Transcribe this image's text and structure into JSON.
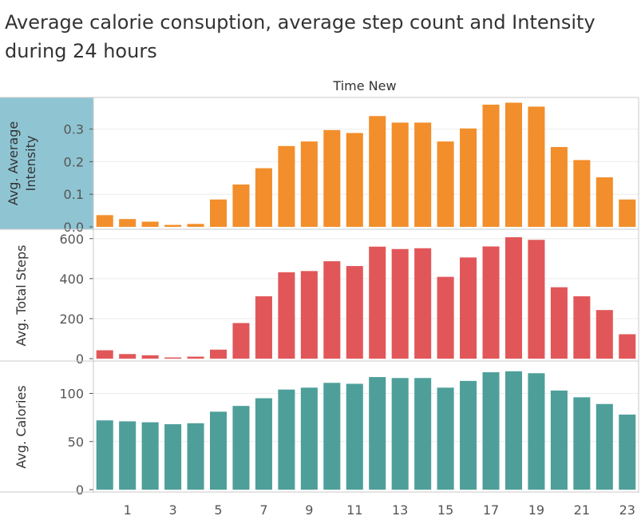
{
  "title": "Average calorie consuption, average step count and Intensity during 24 hours",
  "chart_data": {
    "type": "bar",
    "column_header": "Time New",
    "categories": [
      "0",
      "1",
      "2",
      "3",
      "4",
      "5",
      "6",
      "7",
      "8",
      "9",
      "10",
      "11",
      "12",
      "13",
      "14",
      "15",
      "16",
      "17",
      "18",
      "19",
      "20",
      "21",
      "22",
      "23"
    ],
    "x_tick_labels": [
      "1",
      "3",
      "5",
      "7",
      "9",
      "11",
      "13",
      "15",
      "17",
      "19",
      "21",
      "23"
    ],
    "panels": [
      {
        "name": "Avg. Average Intensity",
        "ylabel": "Avg. Average Intensity",
        "color": "#F28E2B",
        "ylim": [
          0,
          0.38
        ],
        "ticks": [
          0.0,
          0.1,
          0.2,
          0.3
        ],
        "tick_labels": [
          "0.0",
          "0.1",
          "0.2",
          "0.3"
        ],
        "values": [
          0.036,
          0.024,
          0.016,
          0.006,
          0.009,
          0.084,
          0.13,
          0.18,
          0.248,
          0.262,
          0.297,
          0.288,
          0.34,
          0.32,
          0.32,
          0.262,
          0.302,
          0.375,
          0.381,
          0.369,
          0.245,
          0.205,
          0.152,
          0.084
        ]
      },
      {
        "name": "Avg. Total Steps",
        "ylabel": "Avg. Total Steps",
        "color": "#E15759",
        "ylim": [
          0,
          615
        ],
        "ticks": [
          0,
          200,
          400,
          600
        ],
        "tick_labels": [
          "0",
          "200",
          "400",
          "600"
        ],
        "values": [
          42,
          23,
          17,
          6,
          10,
          45,
          178,
          312,
          432,
          438,
          487,
          463,
          560,
          548,
          552,
          409,
          506,
          561,
          607,
          594,
          357,
          312,
          243,
          122
        ]
      },
      {
        "name": "Avg. Calories",
        "ylabel": "Avg. Calories",
        "color": "#4E9F9A",
        "ylim": [
          0,
          127
        ],
        "ticks": [
          0,
          50,
          100
        ],
        "tick_labels": [
          "0",
          "50",
          "100"
        ],
        "values": [
          72,
          71,
          70,
          68,
          69,
          81,
          87,
          95,
          104,
          106,
          111,
          110,
          117,
          116,
          116,
          106,
          113,
          122,
          123,
          121,
          103,
          96,
          89,
          78
        ]
      }
    ],
    "highlight": {
      "panel": "Avg. Average Intensity",
      "color": "#8FC5D3"
    }
  }
}
